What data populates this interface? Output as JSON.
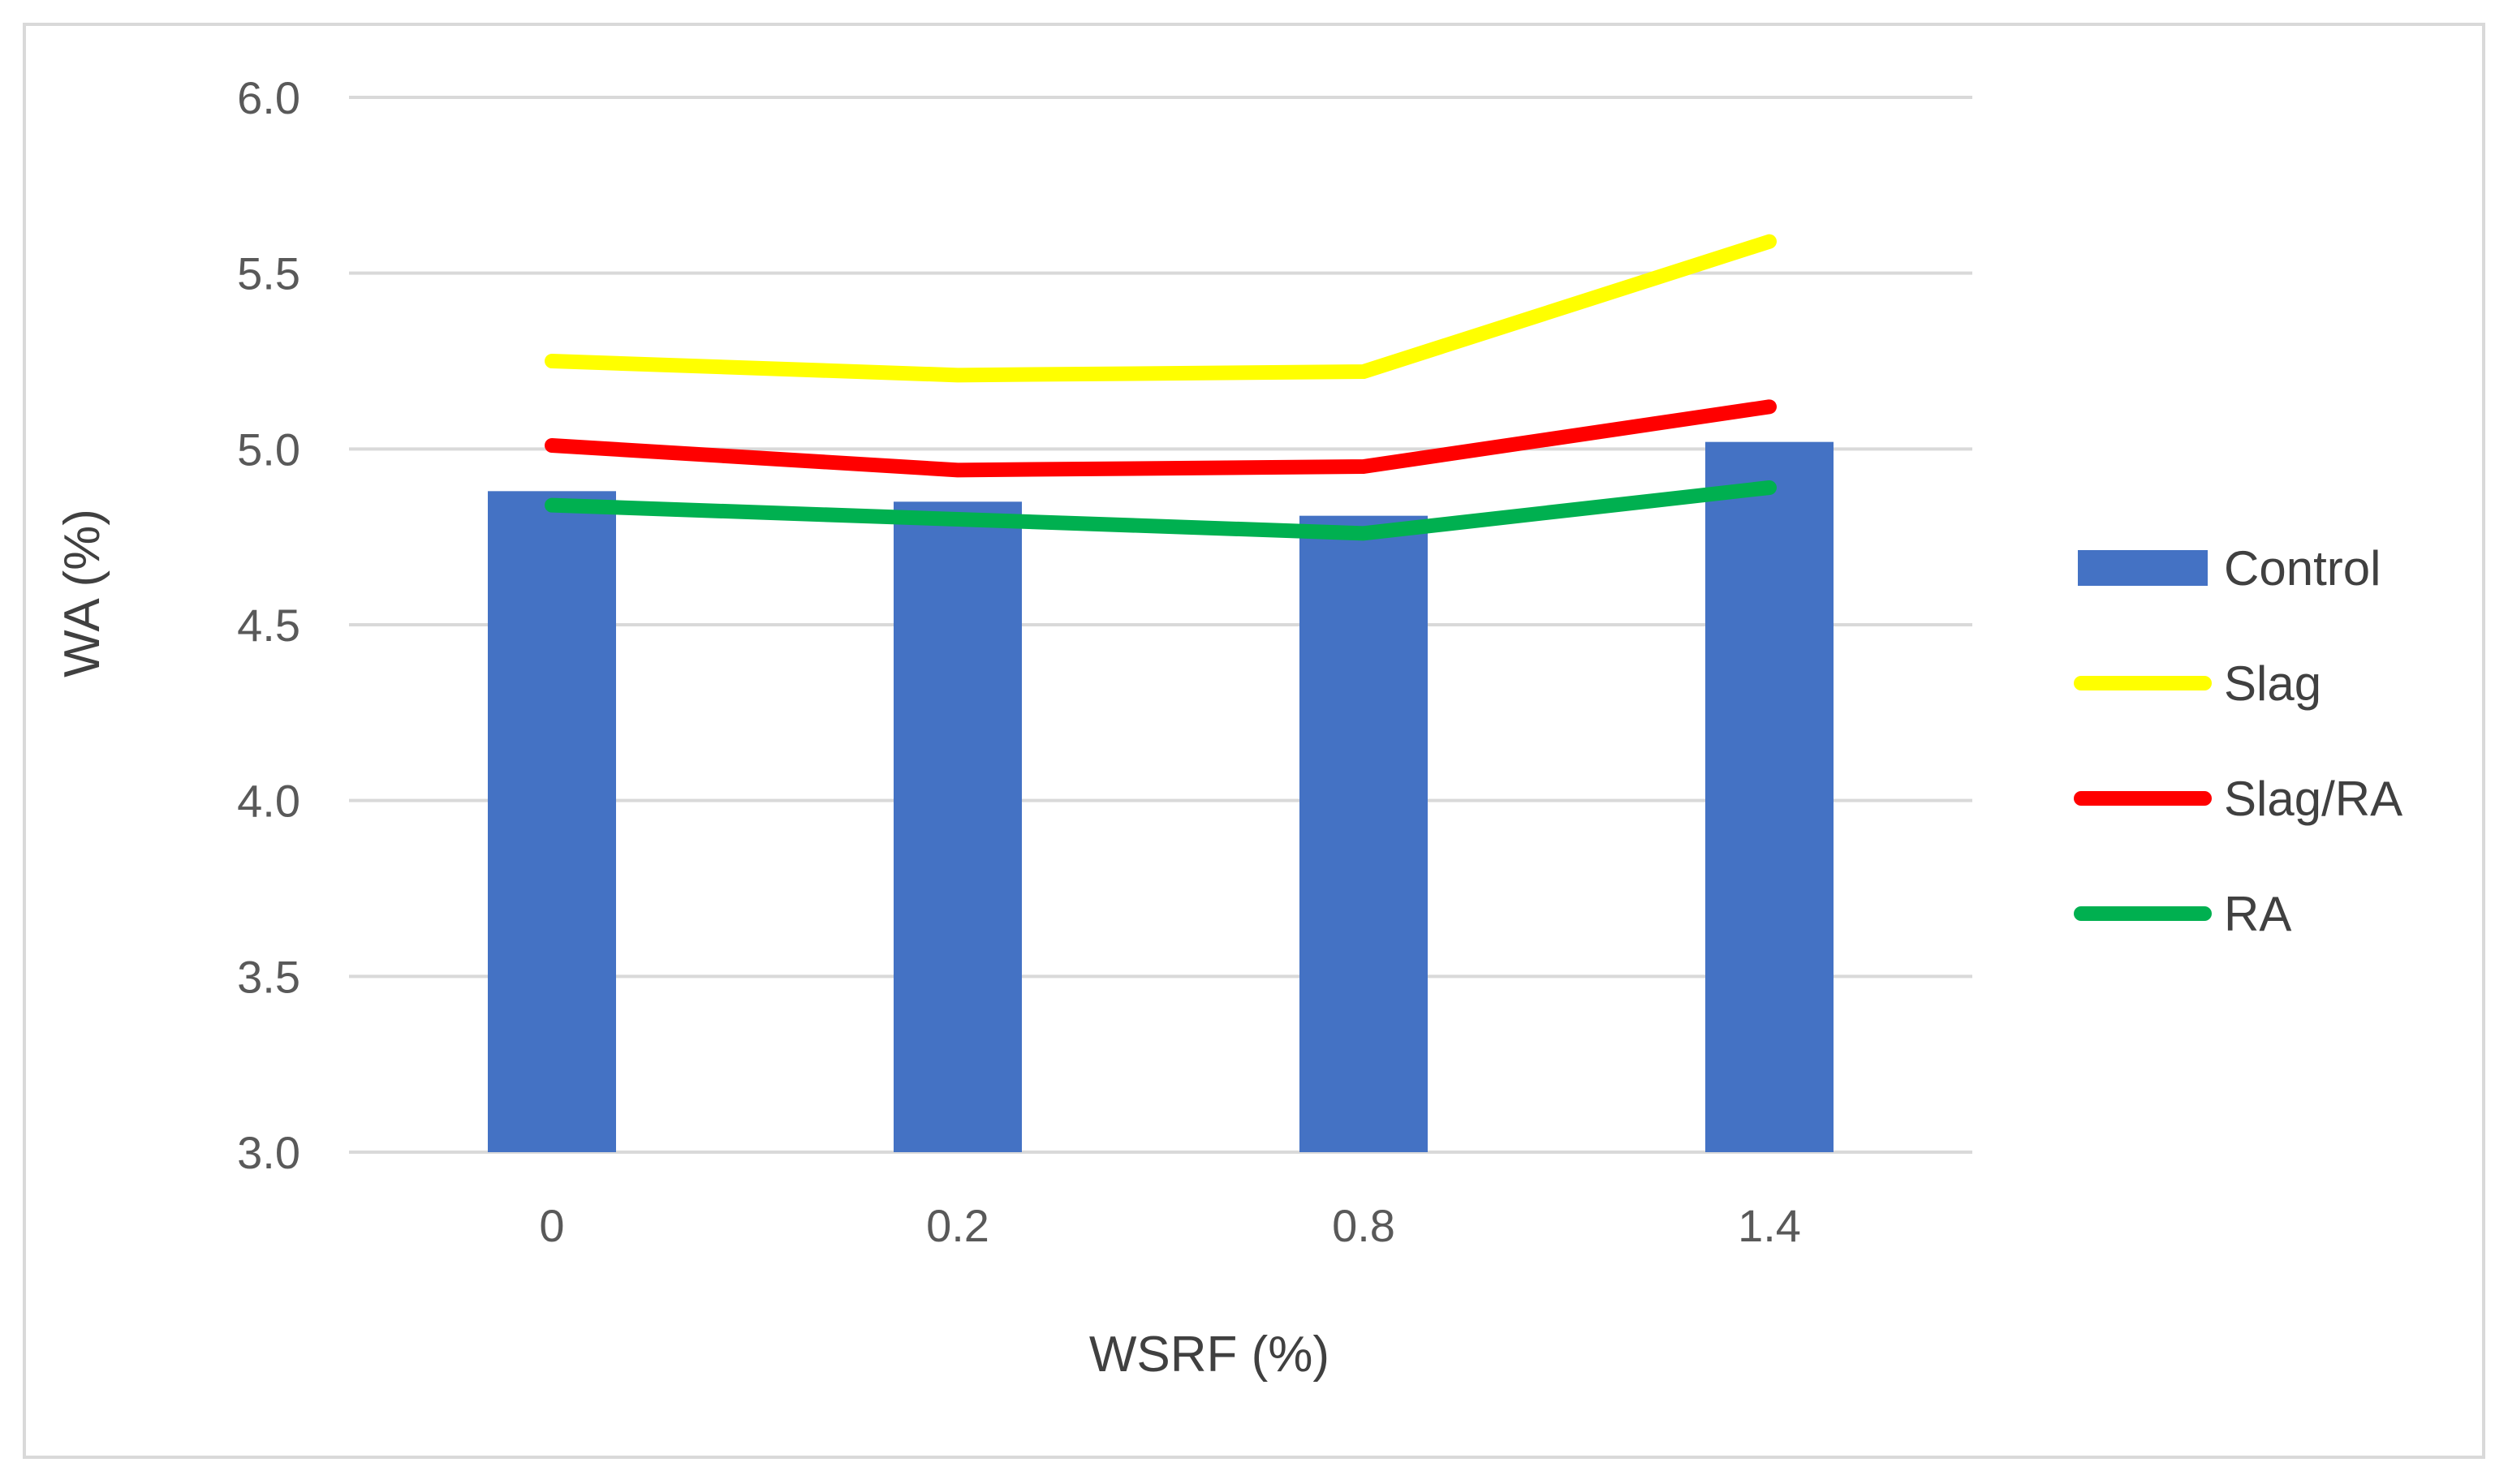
{
  "chart_data": {
    "type": "bar",
    "categories": [
      "0",
      "0.2",
      "0.8",
      "1.4"
    ],
    "xlabel": "WSRF (%)",
    "ylabel": "WA (%)",
    "ylim": [
      3.0,
      6.0
    ],
    "yticks": [
      "3.0",
      "3.5",
      "4.0",
      "4.5",
      "5.0",
      "5.5",
      "6.0"
    ],
    "grid": true,
    "legend_position": "right",
    "series": [
      {
        "name": "Control",
        "kind": "bar",
        "color": "#4472C4",
        "values": [
          4.88,
          4.85,
          4.81,
          5.02
        ]
      },
      {
        "name": "Slag",
        "kind": "line",
        "color": "#FFFF00",
        "values": [
          5.25,
          5.21,
          5.22,
          5.59
        ]
      },
      {
        "name": "Slag/RA",
        "kind": "line",
        "color": "#FF0000",
        "values": [
          5.01,
          4.94,
          4.95,
          5.12
        ]
      },
      {
        "name": "RA",
        "kind": "line",
        "color": "#00B050",
        "values": [
          4.84,
          4.8,
          4.76,
          4.89
        ]
      }
    ]
  }
}
